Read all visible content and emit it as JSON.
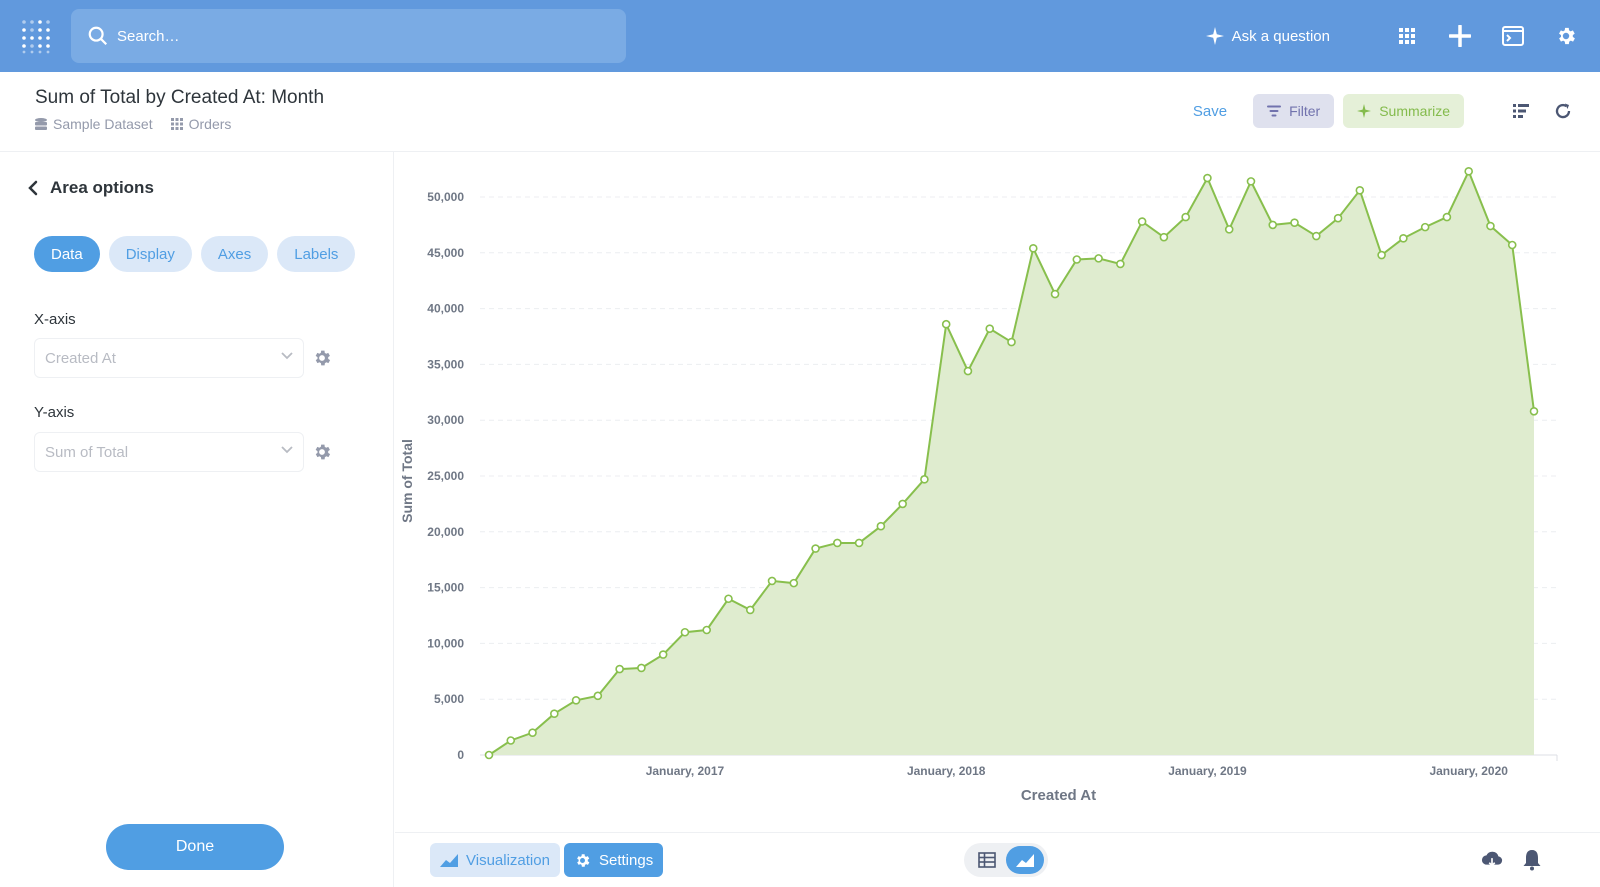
{
  "topbar": {
    "search_placeholder": "Search…",
    "ask_label": "Ask a question"
  },
  "header": {
    "title": "Sum of Total by Created At: Month",
    "breadcrumb_db": "Sample Dataset",
    "breadcrumb_table": "Orders",
    "save_label": "Save",
    "filter_label": "Filter",
    "summarize_label": "Summarize"
  },
  "sidebar": {
    "heading": "Area options",
    "tabs": [
      "Data",
      "Display",
      "Axes",
      "Labels"
    ],
    "active_tab": "Data",
    "x_axis_label": "X-axis",
    "x_axis_value": "Created At",
    "y_axis_label": "Y-axis",
    "y_axis_value": "Sum of Total",
    "done_label": "Done"
  },
  "footer": {
    "visualization_label": "Visualization",
    "settings_label": "Settings"
  },
  "colors": {
    "topbar": "#6199dd",
    "brand": "#509ee3",
    "series": "#88bf4d",
    "area_fill": "#dfeccf"
  },
  "chart_data": {
    "type": "area",
    "xlabel": "Created At",
    "ylabel": "Sum of Total",
    "ylim": [
      0,
      50000
    ],
    "yticks": [
      0,
      5000,
      10000,
      15000,
      20000,
      25000,
      30000,
      35000,
      40000,
      45000,
      50000
    ],
    "ytick_labels": [
      "0",
      "5,000",
      "10,000",
      "15,000",
      "20,000",
      "25,000",
      "30,000",
      "35,000",
      "40,000",
      "45,000",
      "50,000"
    ],
    "x_start": "2016-04",
    "xtick_labels": [
      {
        "label": "January, 2017",
        "index": 9
      },
      {
        "label": "January, 2018",
        "index": 21
      },
      {
        "label": "January, 2019",
        "index": 33
      },
      {
        "label": "January, 2020",
        "index": 45
      }
    ],
    "grid": true,
    "series": [
      {
        "values": [
          0,
          1300,
          2000,
          3700,
          4900,
          5300,
          7700,
          7800,
          9000,
          11000,
          11200,
          14000,
          13000,
          15600,
          15400,
          18500,
          19000,
          19000,
          20500,
          22500,
          24700,
          38600,
          34400,
          38200,
          37000,
          45400,
          41300,
          44400,
          44500,
          44000,
          47800,
          46400,
          48200,
          51700,
          47100,
          51400,
          47500,
          47700,
          46500,
          48100,
          50600,
          44800,
          46300,
          47300,
          48200,
          52300,
          47400,
          45700,
          30800
        ]
      }
    ]
  }
}
